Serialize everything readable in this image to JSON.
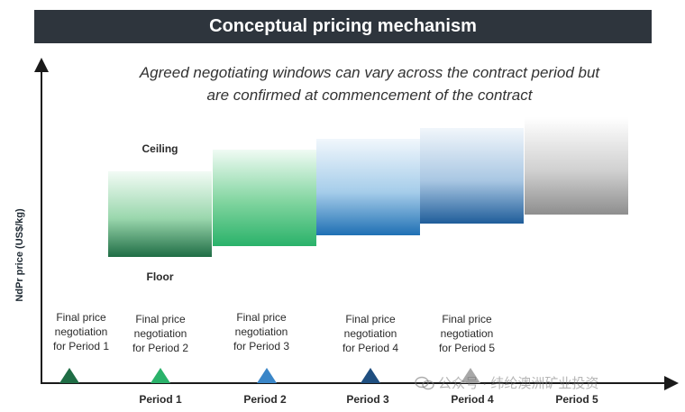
{
  "title": "Conceptual pricing mechanism",
  "subtitle": {
    "line1": "Agreed negotiating windows can vary across the contract period but",
    "line2": "are confirmed at commencement of the contract"
  },
  "y_axis_label": "NdPr price (US$/kg)",
  "band_labels": {
    "ceiling": "Ceiling",
    "floor": "Floor"
  },
  "negotiations": [
    {
      "lines": [
        "Final price",
        "negotiation",
        "for Period 1"
      ],
      "color": "#1f6d45"
    },
    {
      "lines": [
        "Final price",
        "negotiation",
        "for Period 2"
      ],
      "color": "#2ab26a"
    },
    {
      "lines": [
        "Final price",
        "negotiation",
        "for Period 3"
      ],
      "color": "#3a86c8"
    },
    {
      "lines": [
        "Final price",
        "negotiation",
        "for Period 4"
      ],
      "color": "#1f4f80"
    },
    {
      "lines": [
        "Final price",
        "negotiation",
        "for Period 5"
      ],
      "color": "#a8a8a8"
    }
  ],
  "periods": [
    "Period 1",
    "Period 2",
    "Period 3",
    "Period 4",
    "Period 5"
  ],
  "watermark": "公众号 · 纬纶澳洲矿业投资",
  "colors": {
    "title_bg": "#2e353d",
    "period1": "#1f6d45",
    "period2": "#2ab26a",
    "period3": "#1f70b4",
    "period4": "#1f5d9a",
    "period5": "#8e8e8e"
  }
}
